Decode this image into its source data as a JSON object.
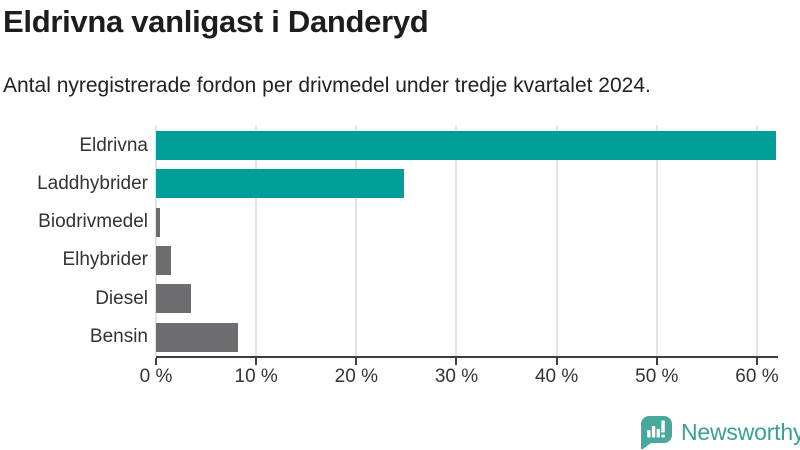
{
  "title": "Eldrivna vanligast i Danderyd",
  "subtitle": "Antal nyregistrerade fordon per drivmedel under tredje kvartalet 2024.",
  "chart_data": {
    "type": "bar",
    "orientation": "horizontal",
    "title": "Eldrivna vanligast i Danderyd",
    "subtitle": "Antal nyregistrerade fordon per drivmedel under tredje kvartalet 2024.",
    "categories": [
      "Eldrivna",
      "Laddhybrider",
      "Biodrivmedel",
      "Elhybrider",
      "Diesel",
      "Bensin"
    ],
    "values": [
      61.9,
      24.8,
      0.4,
      1.5,
      3.5,
      8.2
    ],
    "unit": "%",
    "bar_colors": [
      "#009e99",
      "#009e99",
      "#6c6c71",
      "#6c6c71",
      "#6c6c71",
      "#6c6c71"
    ],
    "highlight_color": "#009e99",
    "default_color": "#6c6c71",
    "xlabel": "",
    "ylabel": "",
    "xlim": [
      0,
      62
    ],
    "x_tick_values": [
      0,
      10,
      20,
      30,
      40,
      50,
      60
    ],
    "x_tick_labels": [
      "0 %",
      "10 %",
      "20 %",
      "30 %",
      "40 %",
      "50 %",
      "60 %"
    ],
    "grid": true,
    "gridline_color": "#e4e4e4",
    "axis_color": "#3e3e3e",
    "label_color": "#333333",
    "legend_position": "none"
  },
  "branding": {
    "logo_text": "Newsworthy",
    "logo_text_color": "#3aa094",
    "icon": "speech-bubble-bar-chart-icon",
    "icon_color": "#47a89c",
    "icon_glyph_color": "#ffffff"
  }
}
